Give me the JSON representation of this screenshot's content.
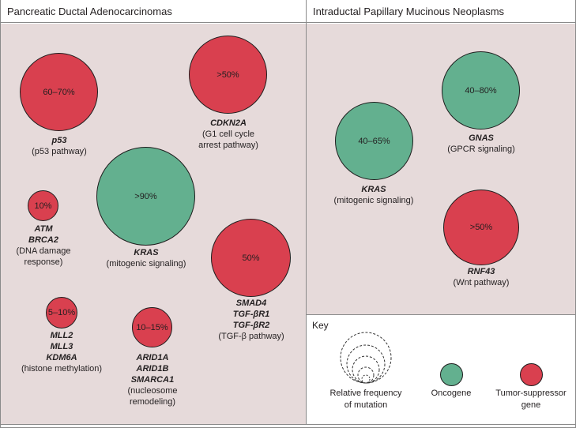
{
  "panels": {
    "left_title": "Pancreatic Ductal Adenocarcinomas",
    "right_title": "Intraductal Papillary Mucinous Neoplasms"
  },
  "pdac": {
    "p53": {
      "pct": "60–70%",
      "gene": "p53",
      "desc": "(p53 pathway)"
    },
    "cdkn2a": {
      "pct": ">50%",
      "gene": "CDKN2A",
      "desc1": "(G1 cell cycle",
      "desc2": "arrest pathway)"
    },
    "kras": {
      "pct": ">90%",
      "gene": "KRAS",
      "desc": "(mitogenic signaling)"
    },
    "atm": {
      "pct": "10%",
      "gene1": "ATM",
      "gene2": "BRCA2",
      "desc1": "(DNA damage",
      "desc2": "response)"
    },
    "smad4": {
      "pct": "50%",
      "gene1": "SMAD4",
      "gene2": "TGF-βR1",
      "gene3": "TGF-βR2",
      "desc": "(TGF-β pathway)"
    },
    "mll": {
      "pct": "5–10%",
      "gene1": "MLL2",
      "gene2": "MLL3",
      "gene3": "KDM6A",
      "desc": "(histone methylation)"
    },
    "arid": {
      "pct": "10–15%",
      "gene1": "ARID1A",
      "gene2": "ARID1B",
      "gene3": "SMARCA1",
      "desc1": "(nucleosome",
      "desc2": "remodeling)"
    }
  },
  "ipmn": {
    "kras": {
      "pct": "40–65%",
      "gene": "KRAS",
      "desc": "(mitogenic signaling)"
    },
    "gnas": {
      "pct": "40–80%",
      "gene": "GNAS",
      "desc": "(GPCR signaling)"
    },
    "rnf43": {
      "pct": ">50%",
      "gene": "RNF43",
      "desc": "(Wnt pathway)"
    }
  },
  "key": {
    "title": "Key",
    "freq1": "Relative frequency",
    "freq2": "of mutation",
    "oncogene": "Oncogene",
    "tsg1": "Tumor-suppressor",
    "tsg2": "gene"
  },
  "colors": {
    "tumor_suppressor": "#d9404f",
    "oncogene": "#63b08f",
    "panel_bg": "#e6dada"
  }
}
